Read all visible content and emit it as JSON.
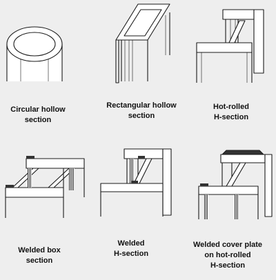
{
  "colors": {
    "background": "#eeeeee",
    "stroke": "#1a1a1a",
    "fill": "#ffffff",
    "weld": "#333333"
  },
  "sections": [
    {
      "id": "circular-hollow",
      "lines": [
        "Circular hollow",
        "section"
      ]
    },
    {
      "id": "rectangular-hollow",
      "lines": [
        "Rectangular hollow",
        "section"
      ]
    },
    {
      "id": "hot-rolled-h",
      "lines": [
        "Hot-rolled",
        "H-section"
      ]
    },
    {
      "id": "welded-box",
      "lines": [
        "Welded box",
        "section"
      ]
    },
    {
      "id": "welded-h",
      "lines": [
        "Welded",
        "H-section"
      ]
    },
    {
      "id": "welded-cover-plate",
      "lines": [
        "Welded cover plate",
        "on hot-rolled",
        "H-section"
      ]
    }
  ]
}
